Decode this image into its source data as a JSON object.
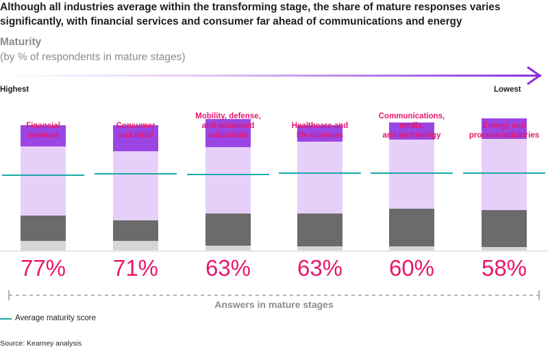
{
  "title": "Although all industries average within the transforming stage, the share of mature responses varies significantly, with financial services and consumer far ahead of communications and energy",
  "subtitle": "Maturity",
  "subtitle_note": "(by % of respondents in mature stages)",
  "scale": {
    "left_label": "Highest",
    "right_label": "Lowest"
  },
  "footer_label": "Answers in mature stages",
  "legend": {
    "label": "Average maturity score"
  },
  "source": "Source: Kearney analysis",
  "colors": {
    "accent_pink": "#e6176b",
    "arrow_purple": "#8c2be0",
    "mature_segment": "#9b45e4",
    "transforming_segment": "#e6d0f9",
    "dark_segment": "#6b6b6b",
    "light_gray_segment": "#d6d6d6",
    "average_line": "#17a8a8"
  },
  "chart_data": {
    "type": "bar",
    "stacked": true,
    "categories": [
      "Financial services",
      "Consumer and retail",
      "Mobility, defense, and advanced industrials",
      "Healthcare and life sciences",
      "Communications, media, and technology",
      "Energy and process industries"
    ],
    "mature_share_labels": [
      "77%",
      "71%",
      "63%",
      "63%",
      "60%",
      "58%"
    ],
    "series": [
      {
        "values": [
          14,
          14,
          7,
          6,
          6,
          5
        ],
        "color": "#d6d6d6"
      },
      {
        "values": [
          37,
          30,
          47,
          48,
          55,
          54
        ],
        "color": "#6b6b6b"
      },
      {
        "values": [
          101,
          101,
          97,
          105,
          101,
          104
        ],
        "color": "#e6d0f9"
      },
      {
        "values": [
          31,
          38,
          41,
          24,
          25,
          30
        ],
        "color": "#9b45e4"
      }
    ],
    "average_maturity_score": [
      110,
      112,
      111,
      113,
      113,
      113
    ],
    "ylim": [
      0,
      200
    ],
    "legend_position": "bottom-left"
  }
}
